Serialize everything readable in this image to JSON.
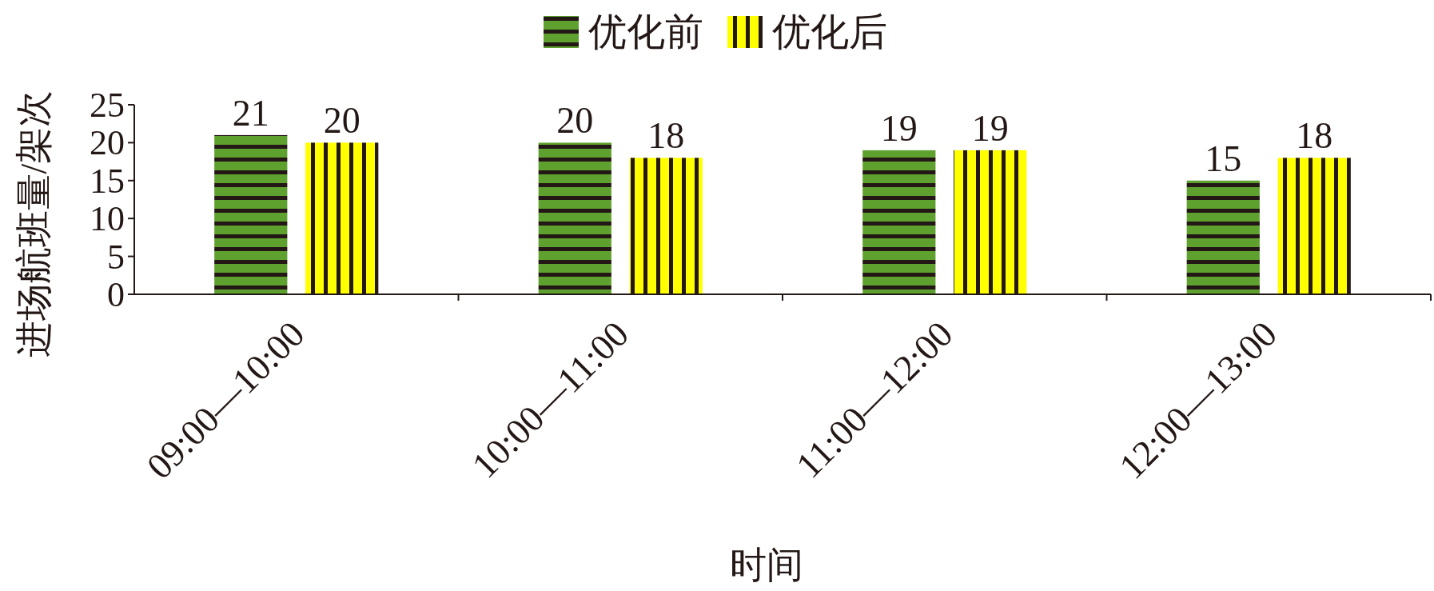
{
  "chart_data": {
    "type": "bar",
    "xlabel": "时间",
    "ylabel": "进场航班量/架次",
    "categories": [
      "09:00—10:00",
      "10:00—11:00",
      "11:00—12:00",
      "12:00—13:00"
    ],
    "series": [
      {
        "name": "优化前",
        "color": "#5fa12f",
        "values": [
          21,
          20,
          19,
          15
        ]
      },
      {
        "name": "优化后",
        "color": "#ffff00",
        "values": [
          20,
          18,
          19,
          18
        ]
      }
    ],
    "ylim": [
      0,
      25
    ],
    "yticks": [
      0,
      5,
      10,
      15,
      20,
      25
    ],
    "data_labels": true,
    "legend": "top",
    "grid": false
  }
}
